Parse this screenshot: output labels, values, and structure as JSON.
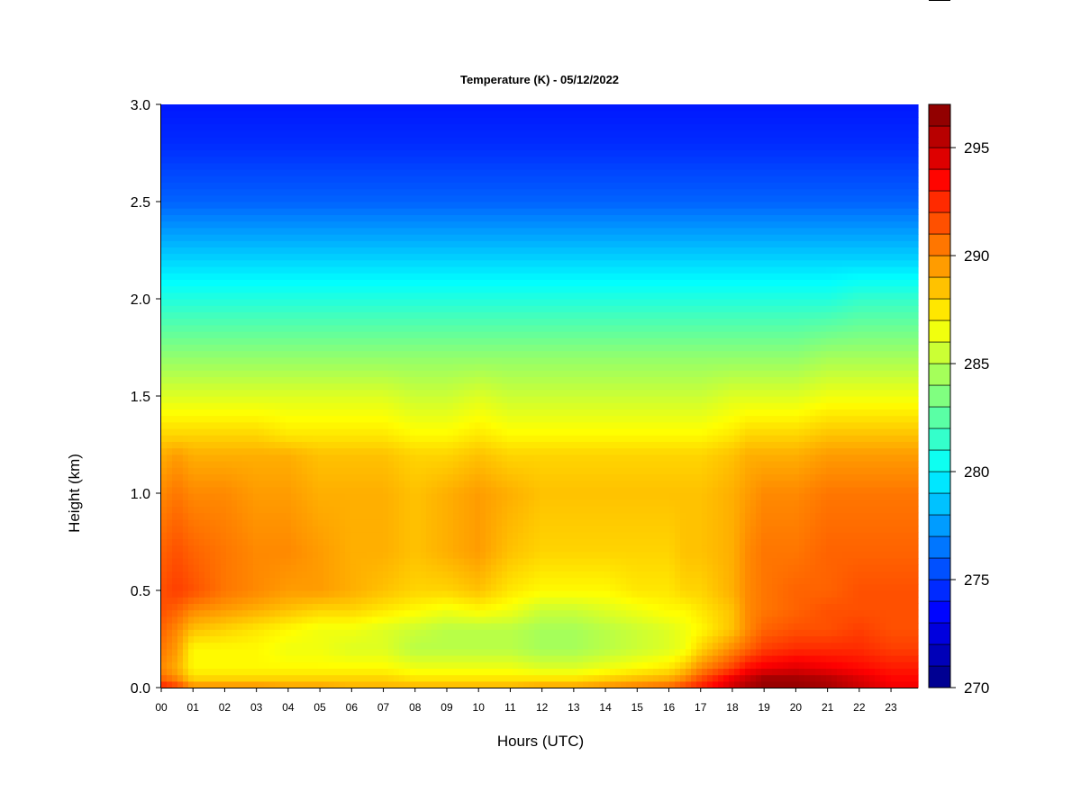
{
  "chart_data": {
    "type": "heatmap",
    "title": "Temperature (K) - 05/12/2022",
    "xlabel": "Hours (UTC)",
    "ylabel": "Height (km)",
    "x_ticks": [
      "00",
      "01",
      "02",
      "03",
      "04",
      "05",
      "06",
      "07",
      "08",
      "09",
      "10",
      "11",
      "12",
      "13",
      "14",
      "15",
      "16",
      "17",
      "18",
      "19",
      "20",
      "21",
      "22",
      "23"
    ],
    "xlim": [
      0,
      23.85
    ],
    "y_ticks": [
      "0.0",
      "0.5",
      "1.0",
      "1.5",
      "2.0",
      "2.5",
      "3.0"
    ],
    "y_tick_values": [
      0,
      0.5,
      1.0,
      1.5,
      2.0,
      2.5,
      3.0
    ],
    "ylim": [
      0,
      3.0
    ],
    "colorbar": {
      "range": [
        270,
        297
      ],
      "ticks": [
        "270",
        "275",
        "280",
        "285",
        "290",
        "295"
      ],
      "tick_values": [
        270,
        275,
        280,
        285,
        290,
        295
      ],
      "colormap": "jet"
    },
    "x_hours": [
      0,
      0.5,
      1,
      2,
      3,
      4,
      5,
      6,
      7,
      8,
      9,
      10,
      11,
      12,
      13,
      14,
      15,
      16,
      16.5,
      17,
      18,
      18.5,
      19,
      20,
      21,
      22,
      23,
      23.85
    ],
    "y_heights_km": [
      0,
      0.05,
      0.1,
      0.2,
      0.3,
      0.4,
      0.5,
      0.7,
      1.0,
      1.2,
      1.3,
      1.5,
      1.7,
      2.0,
      2.2,
      2.5,
      2.8,
      3.0
    ],
    "values_K": [
      [
        293,
        291,
        290,
        290.5,
        291,
        291.5,
        291.5,
        291,
        290,
        289,
        288,
        286,
        284,
        281,
        279,
        276,
        274.5,
        274
      ],
      [
        292,
        290,
        289,
        289.5,
        290,
        291,
        292,
        291.5,
        290.5,
        289.5,
        288,
        286,
        284,
        281,
        279,
        276,
        274.5,
        274
      ],
      [
        290,
        288,
        287,
        287,
        288.5,
        290,
        291.5,
        291,
        290,
        289,
        288,
        286,
        284,
        281,
        279,
        276,
        274.5,
        274
      ],
      [
        290,
        288,
        287,
        287,
        288,
        289.5,
        290.5,
        290.5,
        290,
        289,
        288,
        286,
        284,
        281,
        279,
        276,
        274.5,
        274
      ],
      [
        290,
        288,
        287,
        287,
        287.5,
        289,
        290,
        290,
        289.5,
        289,
        288,
        286,
        284,
        281,
        279,
        276,
        274.5,
        274
      ],
      [
        289.5,
        288,
        287,
        286.5,
        287,
        288.5,
        289.5,
        290,
        289.5,
        289,
        287.5,
        286,
        284,
        281,
        279,
        276,
        274.5,
        274
      ],
      [
        289.5,
        288,
        287,
        286.5,
        286.5,
        288,
        289.5,
        289.5,
        289,
        288.5,
        287.5,
        286,
        284,
        281,
        279,
        276,
        274.5,
        274
      ],
      [
        289,
        288,
        287,
        286,
        286.5,
        288,
        289,
        289,
        289,
        288.5,
        287.5,
        286,
        284,
        281,
        279,
        276,
        274.5,
        274
      ],
      [
        289,
        288,
        287,
        286,
        286,
        287.5,
        288.5,
        289,
        289,
        288.5,
        287.5,
        286,
        284,
        281,
        279,
        276,
        274.5,
        274
      ],
      [
        289,
        287.5,
        286.5,
        285,
        285.5,
        287,
        288,
        288.5,
        288.5,
        288,
        287,
        285.5,
        284,
        281,
        279,
        276,
        274.5,
        274
      ],
      [
        289,
        287.5,
        286.5,
        285,
        285,
        286.5,
        288,
        289,
        289,
        288,
        287,
        285.5,
        284,
        281,
        279,
        276,
        274.5,
        274
      ],
      [
        289,
        287.5,
        286.5,
        285,
        285,
        287,
        288.5,
        289.5,
        289.5,
        288.5,
        287.5,
        286,
        284,
        281,
        279,
        276,
        274.5,
        274
      ],
      [
        289,
        287.5,
        286.5,
        285,
        285,
        286.5,
        287.5,
        288.5,
        289,
        288,
        287,
        285.5,
        284,
        281,
        279,
        276,
        274.5,
        274
      ],
      [
        289.5,
        287.5,
        286,
        284.5,
        284.5,
        285.5,
        287,
        288,
        288.5,
        288,
        287,
        285.5,
        284,
        281,
        279,
        276,
        274.5,
        274
      ],
      [
        289.5,
        287.5,
        286,
        284.5,
        284.5,
        285.5,
        287,
        288,
        288.5,
        288,
        287,
        285.5,
        284,
        281,
        279,
        276,
        274.5,
        274
      ],
      [
        290,
        288,
        286.5,
        285,
        285,
        286,
        287,
        288,
        288.5,
        288,
        287,
        285.5,
        284,
        281,
        279,
        276,
        274.5,
        274
      ],
      [
        290.5,
        288.5,
        287,
        285.5,
        285.5,
        286.5,
        287.5,
        288,
        288.5,
        288,
        287,
        285.5,
        284,
        281,
        279,
        276,
        274.5,
        274
      ],
      [
        291,
        289,
        287.5,
        286,
        286,
        287,
        287.5,
        288,
        288.5,
        288,
        287,
        285.5,
        284,
        281,
        279,
        276,
        274.5,
        274
      ],
      [
        292,
        290,
        288.5,
        286.5,
        286.5,
        287,
        288,
        288.5,
        288.5,
        288,
        287,
        285.5,
        284,
        281,
        279,
        276,
        274.5,
        274
      ],
      [
        293,
        291.5,
        290,
        288,
        287,
        287.5,
        288,
        288.5,
        288.5,
        288,
        287,
        285.5,
        284,
        281,
        279,
        276,
        274.5,
        274
      ],
      [
        295,
        294,
        292,
        290,
        288.5,
        288.5,
        289,
        289,
        289,
        288.5,
        287.5,
        286,
        284,
        281,
        279,
        276,
        274.5,
        274
      ],
      [
        296,
        295,
        293.5,
        291,
        290,
        290,
        290,
        290,
        289.5,
        289,
        288,
        286,
        284,
        281,
        279,
        276,
        274.5,
        274
      ],
      [
        296.5,
        296,
        294,
        292,
        291,
        290.5,
        290.5,
        290.5,
        290,
        289,
        288,
        286,
        284,
        281,
        279,
        276,
        274.5,
        274
      ],
      [
        296.5,
        296,
        294.5,
        292.5,
        291.5,
        291,
        291,
        290.5,
        290,
        289,
        288,
        286,
        284,
        281,
        279,
        276,
        274.5,
        274
      ],
      [
        296,
        295.5,
        294,
        292.5,
        291.5,
        291.5,
        291,
        291,
        290.5,
        289.5,
        288.5,
        286.5,
        284.5,
        281,
        279,
        276,
        274.5,
        274
      ],
      [
        295,
        294.5,
        293.5,
        292.5,
        292,
        291.5,
        291.5,
        291,
        290.5,
        289.5,
        288.5,
        286.5,
        284.5,
        281.5,
        279,
        276,
        274.5,
        274
      ],
      [
        294,
        293.5,
        293,
        292,
        291.5,
        291.5,
        291.5,
        291,
        290.5,
        289.5,
        288.5,
        286.5,
        284.5,
        281.5,
        279,
        276,
        274.5,
        274
      ],
      [
        294,
        293.5,
        293,
        292,
        291.5,
        291.5,
        291.5,
        291,
        290.5,
        289.5,
        288.5,
        286.5,
        284.5,
        281.5,
        279,
        276,
        274.5,
        274
      ]
    ]
  }
}
